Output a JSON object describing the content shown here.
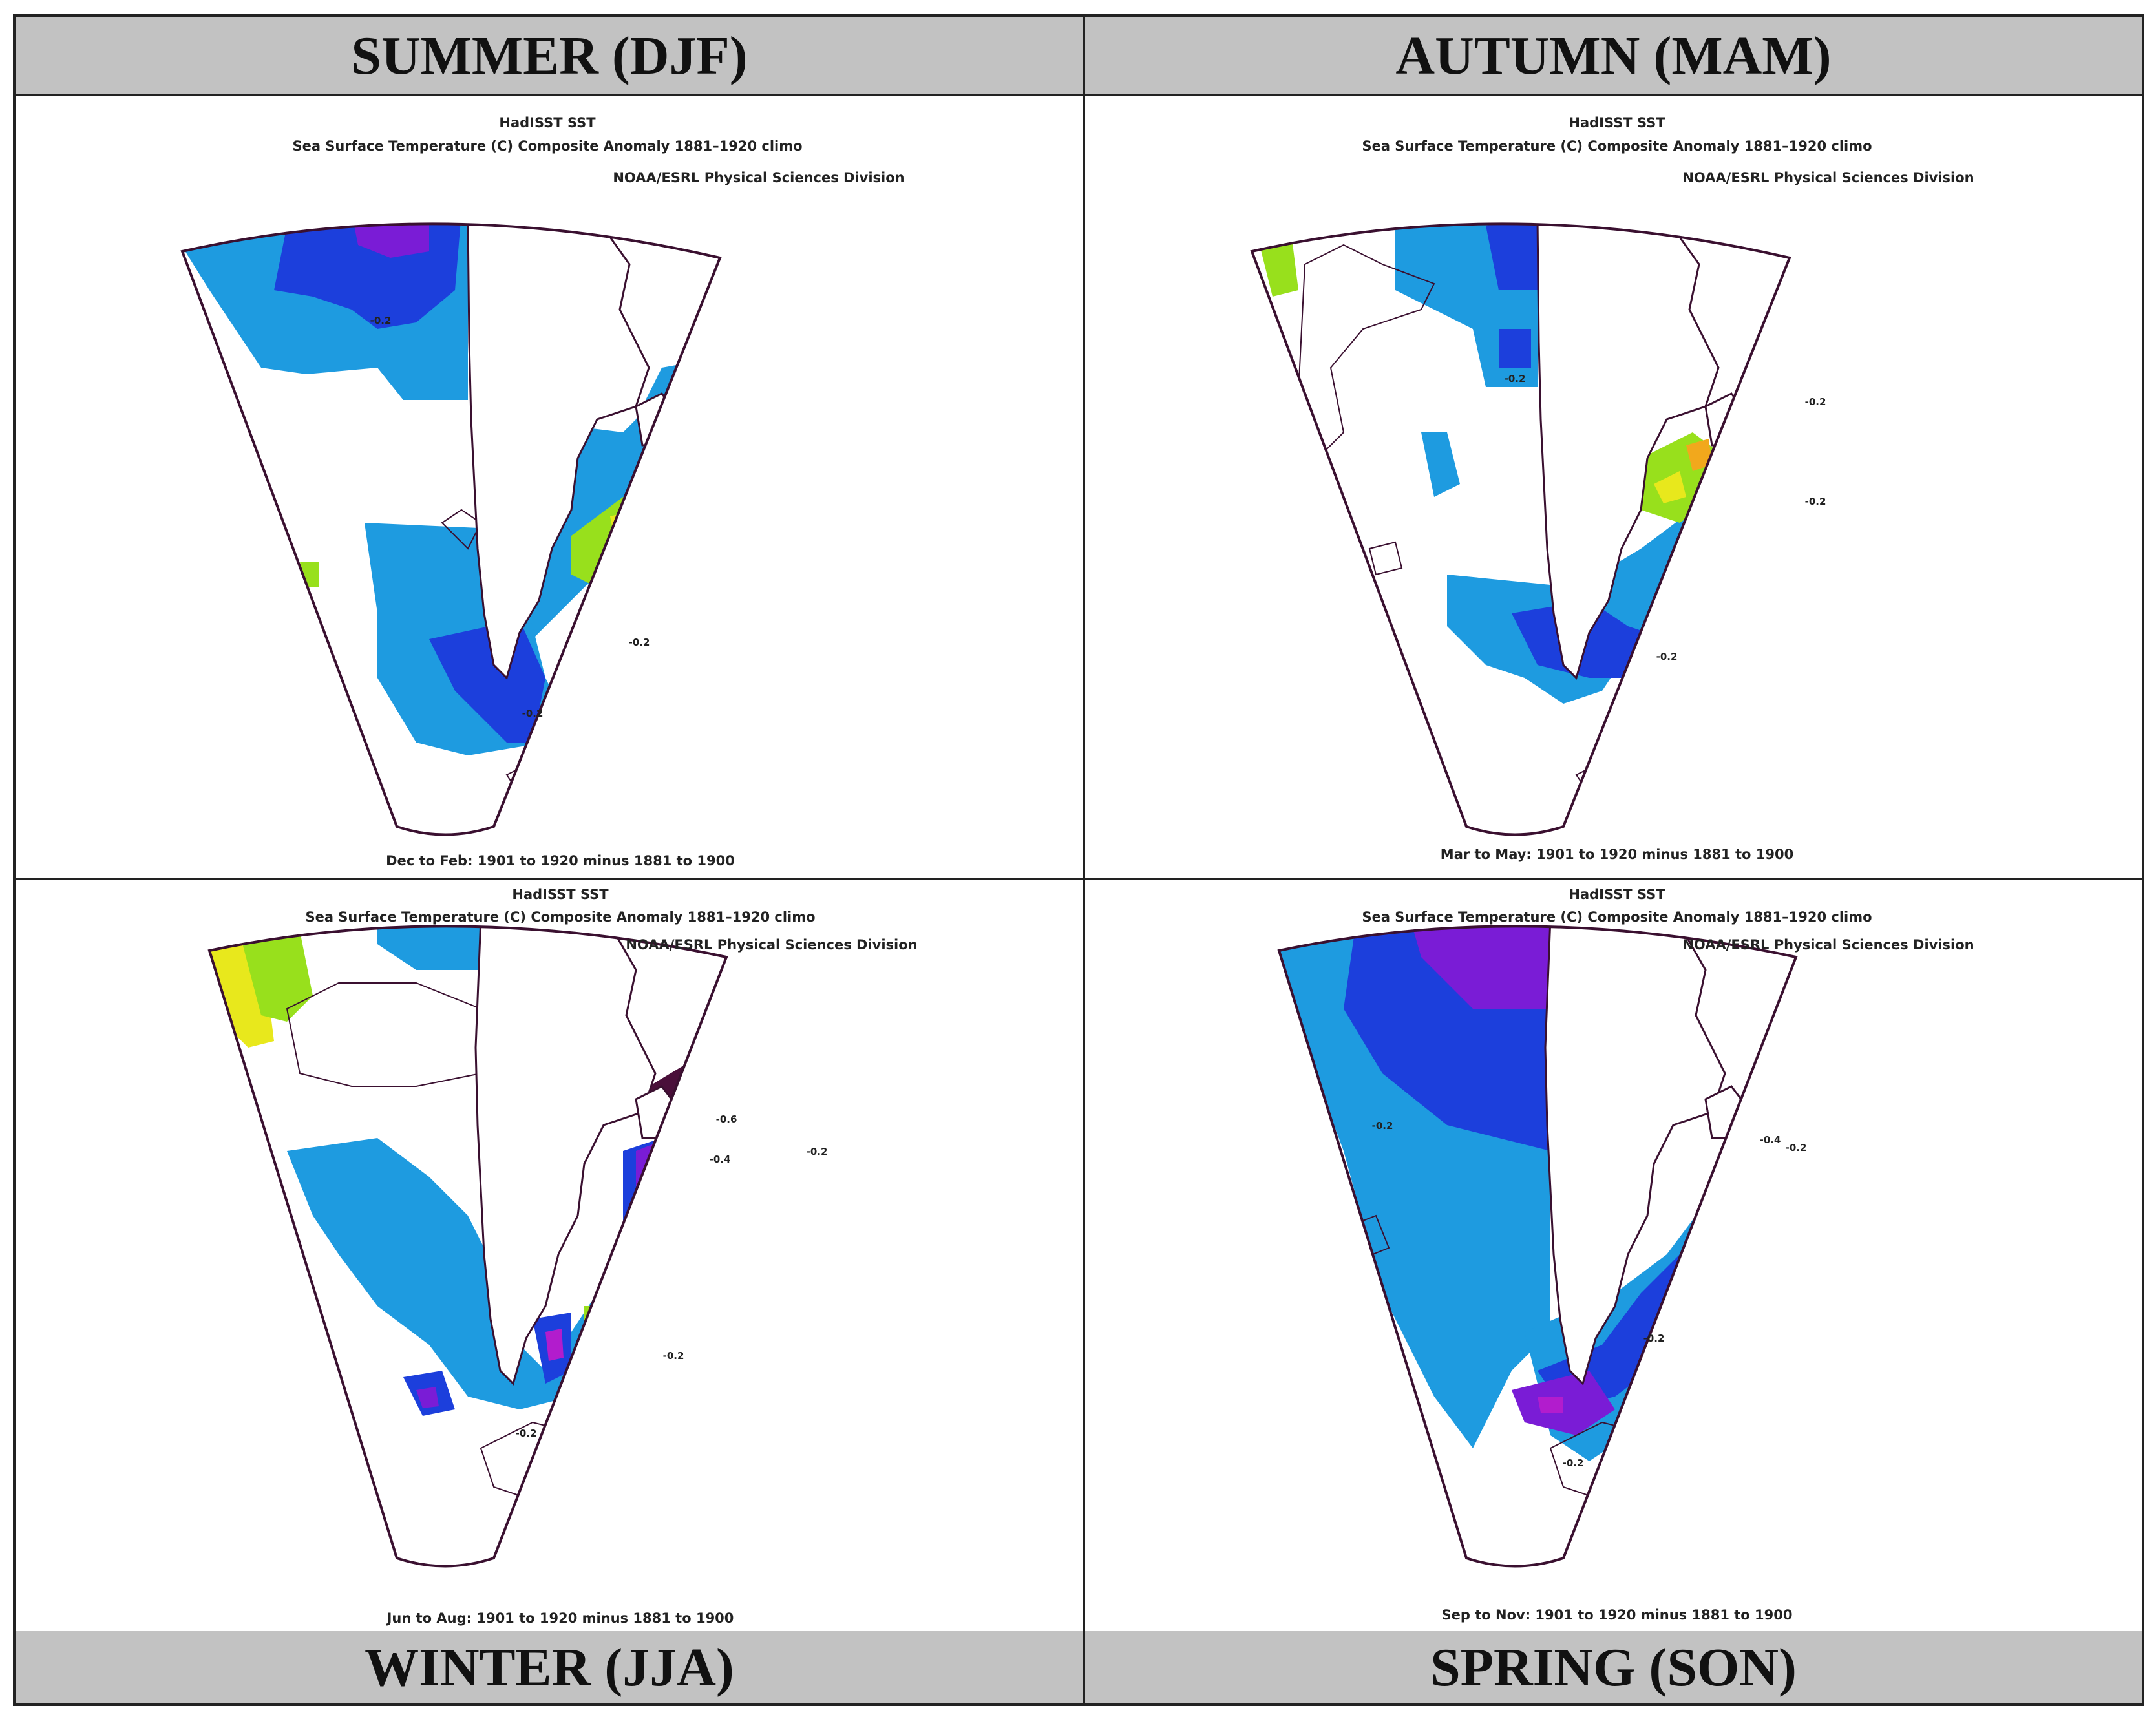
{
  "panels": [
    {
      "season": "SUMMER (DJF)",
      "dataset": "HadISST SST",
      "title": "Sea Surface Temperature (C) Composite Anomaly 1881–1920 climo",
      "credit": "NOAA/ESRL Physical Sciences Division",
      "period": "Dec to Feb: 1901 to 1920 minus 1881 to 1900",
      "contour_labels": [
        "-0.2",
        "-0.2",
        "-0.2"
      ]
    },
    {
      "season": "AUTUMN (MAM)",
      "dataset": "HadISST SST",
      "title": "Sea Surface Temperature (C) Composite Anomaly 1881–1920 climo",
      "credit": "NOAA/ESRL Physical Sciences Division",
      "period": "Mar to May: 1901 to 1920 minus 1881 to 1900",
      "contour_labels": [
        "-0.2",
        "-0.2",
        "-0.2",
        "-0.2"
      ]
    },
    {
      "season": "WINTER (JJA)",
      "dataset": "HadISST SST",
      "title": "Sea Surface Temperature (C) Composite Anomaly 1881–1920 climo",
      "credit": "NOAA/ESRL Physical Sciences Division",
      "period": "Jun to Aug: 1901 to 1920 minus 1881 to 1900",
      "contour_labels": [
        "-0.6",
        "-0.4",
        "-0.2",
        "-0.2",
        "-0.2"
      ]
    },
    {
      "season": "SPRING (SON)",
      "dataset": "HadISST SST",
      "title": "Sea Surface Temperature (C) Composite Anomaly 1881–1920 climo",
      "credit": "NOAA/ESRL Physical Sciences Division",
      "period": "Sep to Nov: 1901 to 1920 minus 1881 to 1900",
      "contour_labels": [
        "-0.2",
        "-0.4",
        "-0.2",
        "-0.2",
        "-0.2"
      ]
    }
  ],
  "colors": {
    "header_bg": "#c2c2c2",
    "anom_-0.2": "#1e9be0",
    "anom_-0.4": "#1c3fdc",
    "anom_-0.6": "#7a1cd6",
    "anom_-0.8": "#b21ccd",
    "anom_-1.0": "#4a0f3a",
    "anom_+0.2": "#98e01c",
    "anom_+0.4": "#e8e81c",
    "anom_+0.6": "#f2a81c",
    "contour_line": "#3a1030"
  }
}
